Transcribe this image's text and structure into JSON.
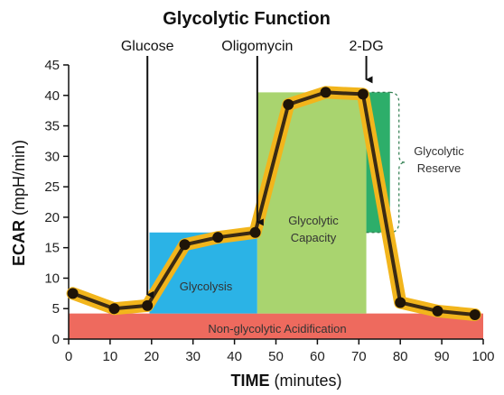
{
  "chart_data": {
    "type": "line",
    "title": "Glycolytic Function",
    "xlabel_bold": "TIME",
    "xlabel_rest": "(minutes)",
    "ylabel_bold": "ECAR",
    "ylabel_rest": "(mpH/min)",
    "xlim": [
      0,
      100
    ],
    "ylim": [
      0,
      45
    ],
    "x_ticks": [
      0,
      10,
      20,
      30,
      40,
      50,
      60,
      70,
      80,
      90,
      100
    ],
    "y_ticks": [
      0,
      5,
      10,
      15,
      20,
      25,
      30,
      35,
      40,
      45
    ],
    "series": [
      {
        "x": [
          1,
          11,
          19,
          28,
          36,
          45,
          53,
          62,
          71,
          80,
          89,
          98
        ],
        "y": [
          7.5,
          5,
          5.5,
          15.5,
          16.7,
          17.5,
          38.5,
          40.5,
          40.2,
          6,
          4.6,
          4
        ]
      }
    ],
    "regions": [
      {
        "name": "Non-glycolytic Acidification",
        "x": [
          0,
          100
        ],
        "y": [
          0,
          4.2
        ],
        "color": "#ee6a5e"
      },
      {
        "name": "Glycolysis",
        "x": [
          19.5,
          45.5
        ],
        "y": [
          4.2,
          17.5
        ],
        "color": "#2bb3e6"
      },
      {
        "name": "Glycolytic Capacity",
        "x": [
          45.5,
          71.8
        ],
        "y": [
          4.2,
          40.5
        ],
        "color": "#a9d46f"
      },
      {
        "name": "Glycolytic Reserve",
        "x": [
          71.8,
          77.5
        ],
        "y": [
          17.5,
          40.5
        ],
        "color": "#2dae6a"
      }
    ],
    "region_labels": {
      "non_glycolytic": "Non-glycolytic Acidification",
      "glycolysis": "Glycolysis",
      "capacity_line1": "Glycolytic",
      "capacity_line2": "Capacity",
      "reserve_line1": "Glycolytic",
      "reserve_line2": "Reserve"
    },
    "injections": [
      {
        "label": "Glucose",
        "x": 19
      },
      {
        "label": "Oligomycin",
        "x": 45.5
      },
      {
        "label": "2-DG",
        "x": 71.8
      }
    ],
    "colors": {
      "line": "#3a2a14",
      "band": "#f2b51c",
      "marker": "#1f1408"
    }
  }
}
